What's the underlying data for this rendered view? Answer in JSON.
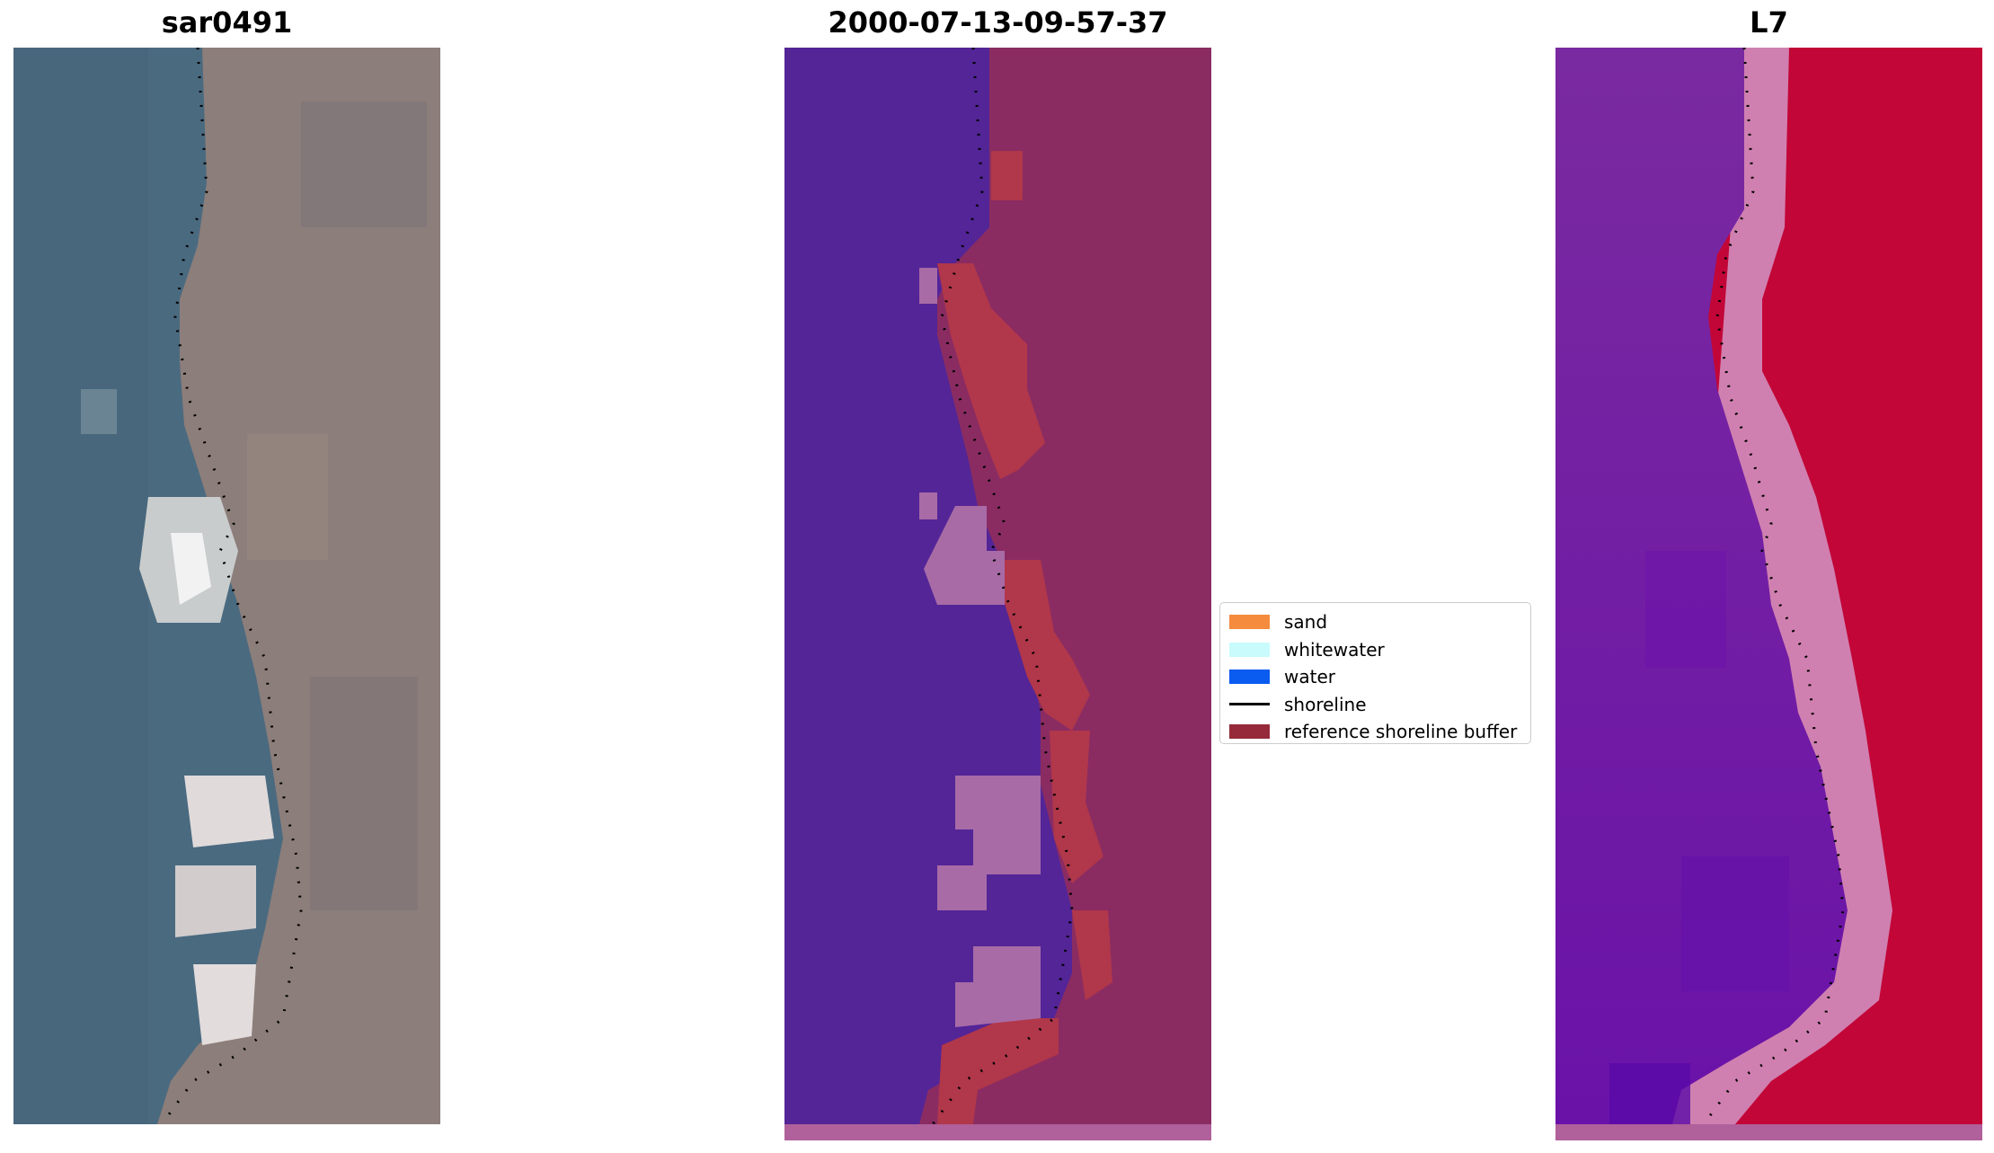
{
  "panels": [
    {
      "title": "sar0491",
      "kind": "rgb"
    },
    {
      "title": "2000-07-13-09-57-37",
      "kind": "classification"
    },
    {
      "title": "L7",
      "kind": "index"
    }
  ],
  "legend": [
    {
      "label": "sand",
      "color": "#f58b3d",
      "type": "patch"
    },
    {
      "label": "whitewater",
      "color": "#c9fbfc",
      "type": "patch"
    },
    {
      "label": "water",
      "color": "#0a5bf0",
      "type": "patch"
    },
    {
      "label": "shoreline",
      "color": "#000000",
      "type": "line"
    },
    {
      "label": "reference shoreline buffer",
      "color": "#962a3a",
      "type": "patch"
    }
  ],
  "colors": {
    "sea_rgb": "#4a6a80",
    "land_rgb": "#8c7e7a",
    "whitewater_rgb": "#e8e4e4",
    "class_water": "#532597",
    "class_land": "#8a2c62",
    "class_buffer": "#b1374a",
    "class_foam": "#a86ba6",
    "index_low": "#7a2aa0",
    "index_high": "#c20638",
    "index_transition": "#d080b0",
    "footer_strip": "#b0609a"
  }
}
